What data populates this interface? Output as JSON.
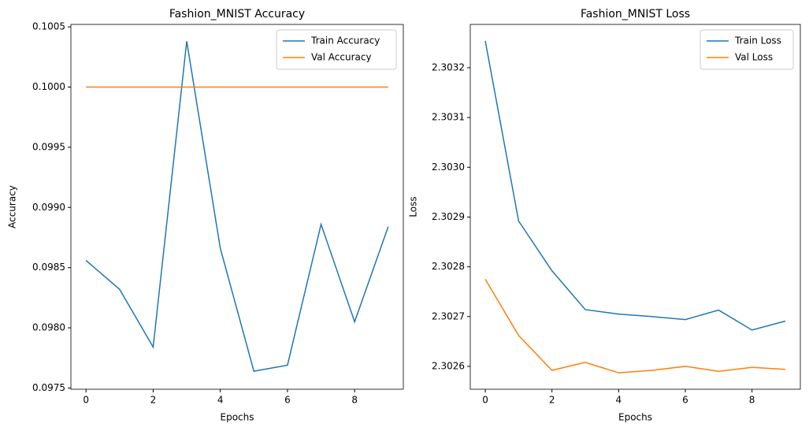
{
  "chart_data": [
    {
      "type": "line",
      "title": "Fashion_MNIST Accuracy",
      "x_label": "Epochs",
      "y_label": "Accuracy",
      "x": [
        0,
        1,
        2,
        3,
        4,
        5,
        6,
        7,
        8,
        9
      ],
      "series": [
        {
          "name": "Train Accuracy",
          "color": "#1f77b4",
          "values": [
            0.09856,
            0.09832,
            0.09784,
            0.10038,
            0.09866,
            0.09764,
            0.09769,
            0.09886,
            0.09805,
            0.09884
          ]
        },
        {
          "name": "Val Accuracy",
          "color": "#ff7f0e",
          "values": [
            0.1,
            0.1,
            0.1,
            0.1,
            0.1,
            0.1,
            0.1,
            0.1,
            0.1,
            0.1
          ]
        }
      ],
      "xlim": [
        -0.45,
        9.45
      ],
      "xticks": [
        0,
        2,
        4,
        6,
        8
      ],
      "ylim": [
        0.09749,
        0.10052
      ],
      "yticks": [
        0.0975,
        {
          "value": 0.098,
          "label": "0.0980"
        },
        0.0985,
        {
          "value": 0.099,
          "label": "0.0990"
        },
        0.0995,
        {
          "value": 0.1,
          "label": "0.1000"
        },
        0.1005
      ],
      "legend": "upper right"
    },
    {
      "type": "line",
      "title": "Fashion_MNIST Loss",
      "x_label": "Epochs",
      "y_label": "Loss",
      "x": [
        0,
        1,
        2,
        3,
        4,
        5,
        6,
        7,
        8,
        9
      ],
      "series": [
        {
          "name": "Train Loss",
          "color": "#1f77b4",
          "values": [
            2.303254,
            2.302892,
            2.302792,
            2.302714,
            2.302705,
            2.3027,
            2.302694,
            2.302713,
            2.302673,
            2.302691
          ]
        },
        {
          "name": "Val Loss",
          "color": "#ff7f0e",
          "values": [
            2.302775,
            2.302662,
            2.302592,
            2.302608,
            2.302587,
            2.302592,
            2.3026,
            2.30259,
            2.302598,
            2.302594
          ]
        }
      ],
      "xlim": [
        -0.45,
        9.45
      ],
      "xticks": [
        0,
        2,
        4,
        6,
        8
      ],
      "ylim": [
        2.302554,
        2.303287
      ],
      "yticks": [
        2.3026,
        2.3027,
        2.3028,
        2.3029,
        {
          "value": 2.303,
          "label": "2.3030"
        },
        2.3031,
        2.3032
      ],
      "legend": "upper right"
    }
  ]
}
